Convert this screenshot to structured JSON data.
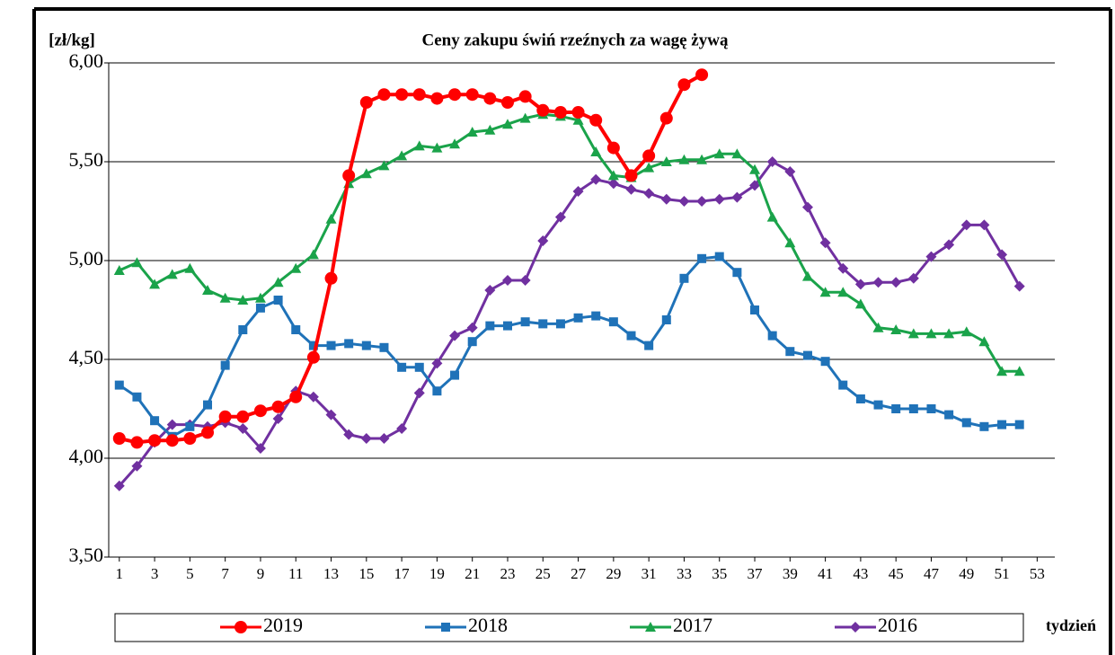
{
  "chart_data": {
    "type": "line",
    "title": "Ceny zakupu świń rzeźnych  za wagę żywą",
    "y_label": "[zł/kg]",
    "x_label": "tydzień",
    "x": [
      1,
      2,
      3,
      4,
      5,
      6,
      7,
      8,
      9,
      10,
      11,
      12,
      13,
      14,
      15,
      16,
      17,
      18,
      19,
      20,
      21,
      22,
      23,
      24,
      25,
      26,
      27,
      28,
      29,
      30,
      31,
      32,
      33,
      34,
      35,
      36,
      37,
      38,
      39,
      40,
      41,
      42,
      43,
      44,
      45,
      46,
      47,
      48,
      49,
      50,
      51,
      52
    ],
    "xlim": [
      0.4,
      54
    ],
    "xticks": [
      1,
      3,
      5,
      7,
      9,
      11,
      13,
      15,
      17,
      19,
      21,
      23,
      25,
      27,
      29,
      31,
      33,
      35,
      37,
      39,
      41,
      43,
      45,
      47,
      49,
      51,
      53
    ],
    "ylim": [
      3.5,
      6.0
    ],
    "yticks": [
      {
        "value": 3.5,
        "label": "3,50"
      },
      {
        "value": 4.0,
        "label": "4,00"
      },
      {
        "value": 4.5,
        "label": "4,50"
      },
      {
        "value": 5.0,
        "label": "5,00"
      },
      {
        "value": 5.5,
        "label": "5,50"
      },
      {
        "value": 6.0,
        "label": "6,00"
      }
    ],
    "grid": true,
    "series": [
      {
        "name": "2019",
        "color": "#ff0000",
        "marker": "circle",
        "values": [
          4.1,
          4.08,
          4.09,
          4.09,
          4.1,
          4.13,
          4.21,
          4.21,
          4.24,
          4.26,
          4.31,
          4.51,
          4.91,
          5.43,
          5.8,
          5.84,
          5.84,
          5.84,
          5.82,
          5.84,
          5.84,
          5.82,
          5.8,
          5.83,
          5.76,
          5.75,
          5.75,
          5.71,
          5.57,
          5.43,
          5.53,
          5.72,
          5.89,
          5.94,
          null,
          null,
          null,
          null,
          null,
          null,
          null,
          null,
          null,
          null,
          null,
          null,
          null,
          null,
          null,
          null,
          null,
          null
        ]
      },
      {
        "name": "2018",
        "color": "#1f72b8",
        "marker": "square",
        "values": [
          4.37,
          4.31,
          4.19,
          4.11,
          4.16,
          4.27,
          4.47,
          4.65,
          4.76,
          4.8,
          4.65,
          4.57,
          4.57,
          4.58,
          4.57,
          4.56,
          4.46,
          4.46,
          4.34,
          4.42,
          4.59,
          4.67,
          4.67,
          4.69,
          4.68,
          4.68,
          4.71,
          4.72,
          4.69,
          4.62,
          4.57,
          4.7,
          4.91,
          5.01,
          5.02,
          4.94,
          4.75,
          4.62,
          4.54,
          4.52,
          4.49,
          4.37,
          4.3,
          4.27,
          4.25,
          4.25,
          4.25,
          4.22,
          4.18,
          4.16,
          4.17,
          4.17
        ]
      },
      {
        "name": "2017",
        "color": "#1aa34a",
        "marker": "triangle",
        "values": [
          4.95,
          4.99,
          4.88,
          4.93,
          4.96,
          4.85,
          4.81,
          4.8,
          4.81,
          4.89,
          4.96,
          5.03,
          5.21,
          5.39,
          5.44,
          5.48,
          5.53,
          5.58,
          5.57,
          5.59,
          5.65,
          5.66,
          5.69,
          5.72,
          5.74,
          5.73,
          5.71,
          5.55,
          5.43,
          5.42,
          5.47,
          5.5,
          5.51,
          5.51,
          5.54,
          5.54,
          5.46,
          5.22,
          5.09,
          4.92,
          4.84,
          4.84,
          4.78,
          4.66,
          4.65,
          4.63,
          4.63,
          4.63,
          4.64,
          4.59,
          4.44,
          4.44
        ]
      },
      {
        "name": "2016",
        "color": "#7030a0",
        "marker": "diamond",
        "values": [
          3.86,
          3.96,
          4.08,
          4.17,
          4.17,
          4.16,
          4.18,
          4.15,
          4.05,
          4.2,
          4.34,
          4.31,
          4.22,
          4.12,
          4.1,
          4.1,
          4.15,
          4.33,
          4.48,
          4.62,
          4.66,
          4.85,
          4.9,
          4.9,
          5.1,
          5.22,
          5.35,
          5.41,
          5.39,
          5.36,
          5.34,
          5.31,
          5.3,
          5.3,
          5.31,
          5.32,
          5.38,
          5.5,
          5.45,
          5.27,
          5.09,
          4.96,
          4.88,
          4.89,
          4.89,
          4.91,
          5.02,
          5.08,
          5.18,
          5.18,
          5.03,
          4.87
        ]
      }
    ]
  }
}
